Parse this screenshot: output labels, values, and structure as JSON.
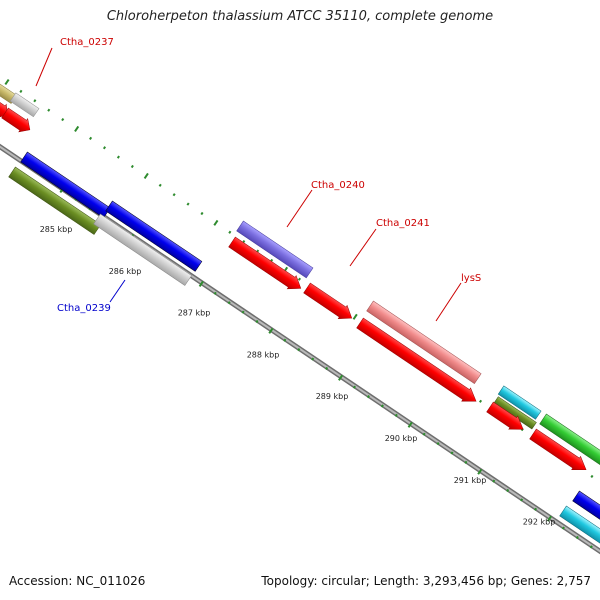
{
  "title": "Chloroherpeton thalassium ATCC 35110, complete genome",
  "footer": {
    "accession": "Accession: NC_011026",
    "summary": "Topology: circular; Length: 3,293,456 bp; Genes: 2,757"
  },
  "colors": {
    "backbone": "#8c8c8c",
    "tick": "#2e8b2e",
    "label_red": "#cc0000",
    "label_blue": "#0000cc"
  },
  "axis_ticks": [
    {
      "kbp": 285,
      "label": "285 kbp"
    },
    {
      "kbp": 286,
      "label": "286 kbp"
    },
    {
      "kbp": 287,
      "label": "287 kbp"
    },
    {
      "kbp": 288,
      "label": "288 kbp"
    },
    {
      "kbp": 289,
      "label": "289 kbp"
    },
    {
      "kbp": 290,
      "label": "290 kbp"
    },
    {
      "kbp": 291,
      "label": "291 kbp"
    },
    {
      "kbp": 292,
      "label": "292 kbp"
    }
  ],
  "gene_labels": [
    {
      "text": "Ctha_0237",
      "color": "red"
    },
    {
      "text": "Ctha_0239",
      "color": "blue"
    },
    {
      "text": "Ctha_0240",
      "color": "red"
    },
    {
      "text": "Ctha_0241",
      "color": "red"
    },
    {
      "text": "lysS",
      "color": "red"
    }
  ]
}
